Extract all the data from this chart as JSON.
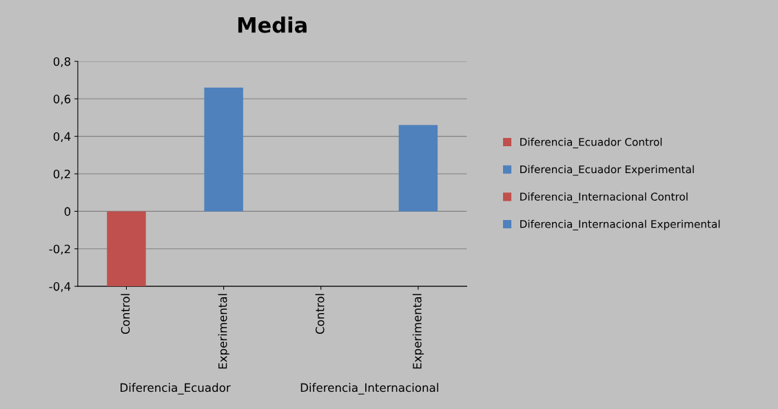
{
  "chart_data": {
    "type": "bar",
    "title": "Media",
    "categories": [
      "Control",
      "Experimental",
      "Control",
      "Experimental"
    ],
    "series": [
      {
        "name": "Diferencia_Ecuador Control",
        "color": "#c0504d",
        "values": [
          -0.4,
          null,
          null,
          null
        ]
      },
      {
        "name": "Diferencia_Ecuador Experimental",
        "color": "#4f81bd",
        "values": [
          null,
          0.66,
          null,
          null
        ]
      },
      {
        "name": "Diferencia_Internacional Control",
        "color": "#c0504d",
        "values": [
          null,
          null,
          0.0,
          null
        ]
      },
      {
        "name": "Diferencia_Internacional Experimental",
        "color": "#4f81bd",
        "values": [
          null,
          null,
          null,
          0.46
        ]
      }
    ],
    "annotations": [
      "Diferencia_Ecuador",
      "Diferencia_Internacional"
    ],
    "ylim": [
      -0.4,
      0.8
    ],
    "yticks": [
      {
        "value": -0.4,
        "label": "-0,4"
      },
      {
        "value": -0.2,
        "label": "-0,2"
      },
      {
        "value": 0,
        "label": "0"
      },
      {
        "value": 0.2,
        "label": "0,2"
      },
      {
        "value": 0.4,
        "label": "0,4"
      },
      {
        "value": 0.6,
        "label": "0,6"
      },
      {
        "value": 0.8,
        "label": "0,8"
      }
    ],
    "grid": "y",
    "legend": "right"
  }
}
